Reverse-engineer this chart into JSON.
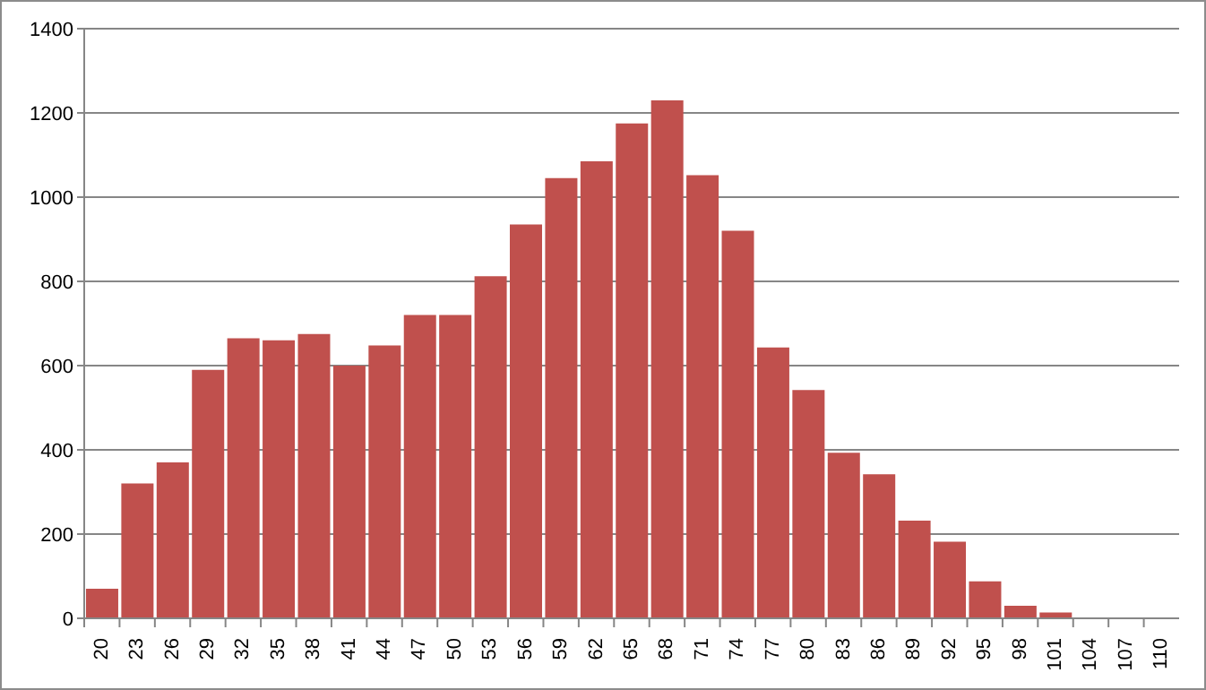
{
  "chart_data": {
    "type": "bar",
    "categories": [
      "20",
      "23",
      "26",
      "29",
      "32",
      "35",
      "38",
      "41",
      "44",
      "47",
      "50",
      "53",
      "56",
      "59",
      "62",
      "65",
      "68",
      "71",
      "74",
      "77",
      "80",
      "83",
      "86",
      "89",
      "92",
      "95",
      "98",
      "101",
      "104",
      "107",
      "110"
    ],
    "values": [
      70,
      320,
      370,
      590,
      665,
      660,
      675,
      600,
      648,
      720,
      720,
      812,
      935,
      1045,
      1085,
      1175,
      1230,
      1052,
      920,
      643,
      542,
      393,
      342,
      232,
      182,
      88,
      30,
      14,
      0,
      0,
      0
    ],
    "color": "#c0504d",
    "ylim": [
      0,
      1400
    ],
    "yticks": [
      0,
      200,
      400,
      600,
      800,
      1000,
      1200,
      1400
    ],
    "grid": "y",
    "legend": false
  }
}
